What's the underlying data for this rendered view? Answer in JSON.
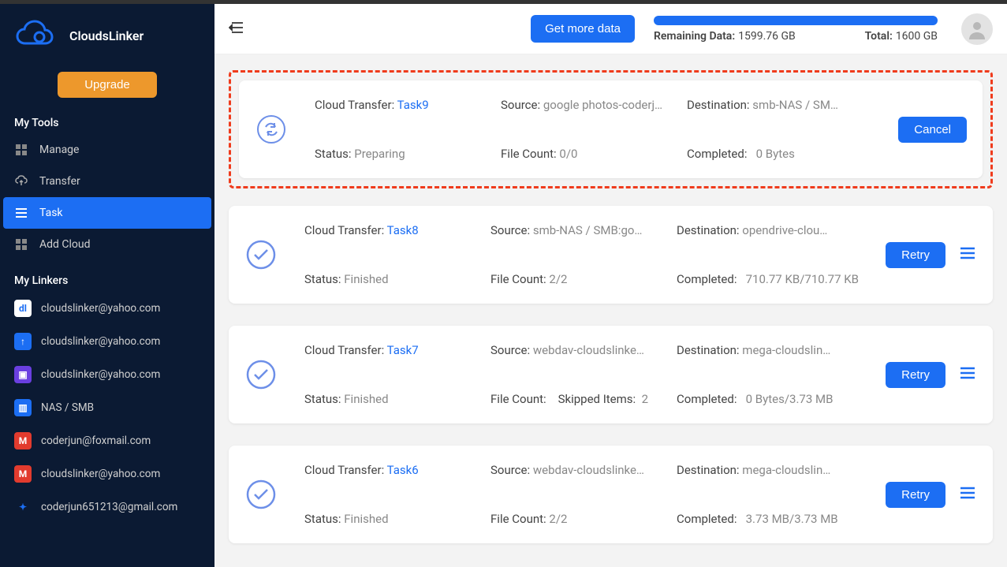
{
  "brand": {
    "name": "CloudsLinker"
  },
  "upgrade": {
    "label": "Upgrade"
  },
  "sections": {
    "tools": "My Tools",
    "linkers": "My Linkers"
  },
  "nav": {
    "manage": "Manage",
    "transfer": "Transfer",
    "task": "Task",
    "addcloud": "Add Cloud"
  },
  "linkers": [
    {
      "label": "cloudslinker@yahoo.com",
      "iconbg": "#ffffff",
      "iconfg": "#1c6ef3",
      "glyph": "dl"
    },
    {
      "label": "cloudslinker@yahoo.com",
      "iconbg": "#1c6ef3",
      "iconfg": "#ffffff",
      "glyph": "↑"
    },
    {
      "label": "cloudslinker@yahoo.com",
      "iconbg": "#6a3fe0",
      "iconfg": "#ffffff",
      "glyph": "▣"
    },
    {
      "label": "NAS / SMB",
      "iconbg": "#1c6ef3",
      "iconfg": "#ffffff",
      "glyph": "▥"
    },
    {
      "label": "coderjun@foxmail.com",
      "iconbg": "#e23b2e",
      "iconfg": "#ffffff",
      "glyph": "M"
    },
    {
      "label": "cloudslinker@yahoo.com",
      "iconbg": "#e23b2e",
      "iconfg": "#ffffff",
      "glyph": "M"
    },
    {
      "label": "coderjun651213@gmail.com",
      "iconbg": "transparent",
      "iconfg": "#1c6ef3",
      "glyph": "✦"
    }
  ],
  "header": {
    "getmore": "Get more data",
    "remaining_label": "Remaining Data:",
    "remaining_value": "1599.76 GB",
    "total_label": "Total:",
    "total_value": "1600 GB"
  },
  "labels": {
    "cloud_transfer": "Cloud Transfer:",
    "source": "Source:",
    "destination": "Destination:",
    "status": "Status:",
    "file_count": "File Count:",
    "skipped": "Skipped Items:",
    "completed": "Completed:",
    "cancel": "Cancel",
    "retry": "Retry"
  },
  "tasks": [
    {
      "name": "Task9",
      "source": "google photos-coderj…",
      "destination": "smb-NAS / SM…",
      "status": "Preparing",
      "file_count": "0/0",
      "completed": "0 Bytes",
      "icon": "sync",
      "action": "cancel",
      "highlight": true
    },
    {
      "name": "Task8",
      "source": "smb-NAS / SMB:go…",
      "destination": "opendrive-clou…",
      "status": "Finished",
      "file_count": "2/2",
      "completed": "710.77 KB/710.77 KB",
      "icon": "check",
      "action": "retry"
    },
    {
      "name": "Task7",
      "source": "webdav-cloudslinke…",
      "destination": "mega-cloudslin…",
      "status": "Finished",
      "file_count": "",
      "skipped": "2",
      "completed": "0 Bytes/3.73 MB",
      "icon": "check",
      "action": "retry"
    },
    {
      "name": "Task6",
      "source": "webdav-cloudslinke…",
      "destination": "mega-cloudslin…",
      "status": "Finished",
      "file_count": "2/2",
      "completed": "3.73 MB/3.73 MB",
      "icon": "check",
      "action": "retry"
    }
  ]
}
